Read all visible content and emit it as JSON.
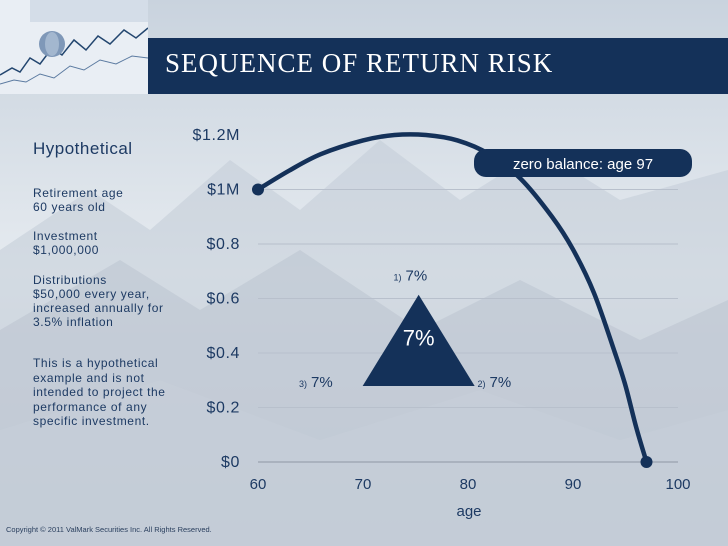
{
  "title": "SEQUENCE OF RETURN RISK",
  "panel": {
    "heading": "Hypothetical",
    "retirement_age": [
      "Retirement age",
      "60 years old"
    ],
    "investment": [
      "Investment",
      "$1,000,000"
    ],
    "distributions": [
      "Distributions",
      "$50,000 every year,",
      "increased annually for",
      "3.5% inflation"
    ],
    "disclaimer": [
      "This is a hypothetical",
      "example and is not",
      "intended to project the",
      "performance of any",
      "specific investment."
    ]
  },
  "copyright": "Copyright © 2011 ValMark Securities Inc. All Rights Reserved.",
  "colors": {
    "header": "#143159",
    "curve": "#143159",
    "text": "#1d3a63",
    "grid": "#b8c0cc"
  },
  "chart_data": {
    "type": "line",
    "xlabel": "age",
    "ylabel": "",
    "xlim": [
      60,
      100
    ],
    "ylim": [
      0,
      1.2
    ],
    "x_ticks": [
      60,
      70,
      80,
      90,
      100
    ],
    "x_tick_labels": [
      "60",
      "70",
      "80",
      "90",
      "100"
    ],
    "y_ticks": [
      0,
      0.2,
      0.4,
      0.6,
      0.8,
      1.0,
      1.2
    ],
    "y_tick_labels": [
      "$0",
      "$0.2",
      "$0.4",
      "$0.6",
      "$0.8",
      "$1M",
      "$1.2M"
    ],
    "grid": true,
    "series": [
      {
        "x": [
          60,
          63,
          66,
          70,
          73,
          76,
          79,
          82,
          85,
          88,
          90,
          92,
          94,
          95,
          96,
          97
        ],
        "y": [
          1.0,
          1.07,
          1.13,
          1.18,
          1.2,
          1.2,
          1.18,
          1.13,
          1.04,
          0.9,
          0.78,
          0.62,
          0.4,
          0.28,
          0.13,
          0.0
        ]
      }
    ],
    "annotations": {
      "callout": "zero balance: age 97",
      "center_return": "7%",
      "returns": [
        {
          "index": "1)",
          "value": "7%",
          "x": 75,
          "y": 0.68
        },
        {
          "index": "2)",
          "value": "7%",
          "x": 83,
          "y": 0.29
        },
        {
          "index": "3)",
          "value": "7%",
          "x": 66,
          "y": 0.29
        }
      ]
    }
  }
}
